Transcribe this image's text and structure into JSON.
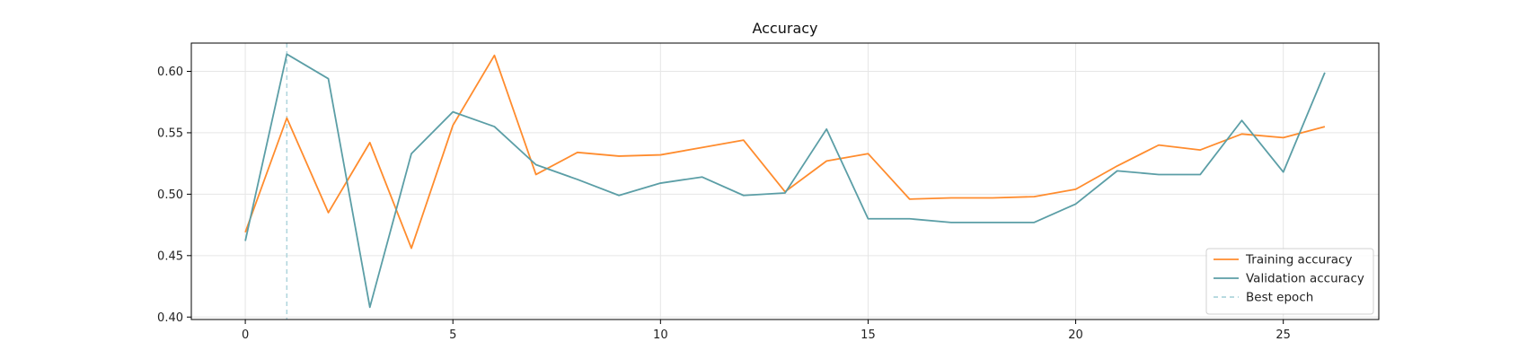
{
  "chart_data": {
    "type": "line",
    "title": "Accuracy",
    "xlabel": "",
    "ylabel": "",
    "xlim": [
      -1.3,
      27.3
    ],
    "ylim": [
      0.398,
      0.623
    ],
    "xticks": [
      0,
      5,
      10,
      15,
      20,
      25
    ],
    "yticks": [
      0.4,
      0.45,
      0.5,
      0.55,
      0.6
    ],
    "ytick_labels": [
      "0.40",
      "0.45",
      "0.50",
      "0.55",
      "0.60"
    ],
    "grid": true,
    "legend_position": "lower-right",
    "x": [
      0,
      1,
      2,
      3,
      4,
      5,
      6,
      7,
      8,
      9,
      10,
      11,
      12,
      13,
      14,
      15,
      16,
      17,
      18,
      19,
      20,
      21,
      22,
      23,
      24,
      25,
      26
    ],
    "series": [
      {
        "name": "Training accuracy",
        "color": "#ff8c2e",
        "values": [
          0.469,
          0.562,
          0.485,
          0.542,
          0.456,
          0.556,
          0.613,
          0.516,
          0.534,
          0.531,
          0.532,
          0.538,
          0.544,
          0.502,
          0.527,
          0.533,
          0.496,
          0.497,
          0.497,
          0.498,
          0.504,
          0.523,
          0.54,
          0.536,
          0.549,
          0.546,
          0.555
        ]
      },
      {
        "name": "Validation accuracy",
        "color": "#5b9ea6",
        "values": [
          0.462,
          0.614,
          0.594,
          0.408,
          0.533,
          0.567,
          0.555,
          0.524,
          0.512,
          0.499,
          0.509,
          0.514,
          0.499,
          0.501,
          0.553,
          0.48,
          0.48,
          0.477,
          0.477,
          0.477,
          0.492,
          0.519,
          0.516,
          0.516,
          0.56,
          0.518,
          0.599
        ]
      }
    ],
    "vlines": [
      {
        "name": "Best epoch",
        "x": 1,
        "color": "#aed5dc",
        "style": "dashed"
      }
    ]
  }
}
